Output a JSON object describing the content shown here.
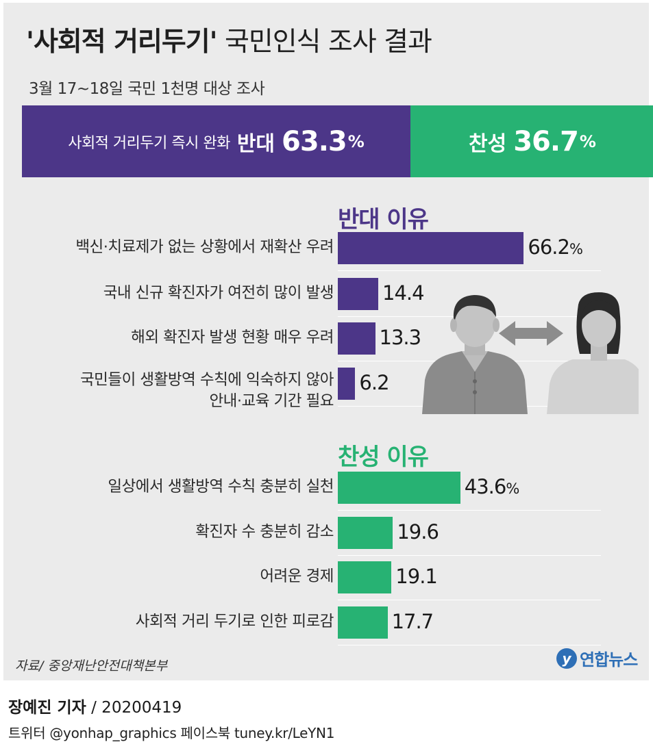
{
  "header": {
    "title_bold": "'사회적 거리두기'",
    "title_rest": " 국민인식 조사 결과",
    "subtitle": "3월 17~18일 국민 1천명 대상 조사"
  },
  "split": {
    "oppose_text": "사회적 거리두기 즉시 완화",
    "oppose_word": "반대",
    "oppose_value": "63.3",
    "support_word": "찬성",
    "support_value": "36.7",
    "pct": "%",
    "oppose_color": "#4c3688",
    "support_color": "#27b273"
  },
  "chart_data": [
    {
      "type": "bar",
      "title": "반대 이유",
      "color": "#4c3688",
      "categories": [
        [
          "백신·치료제가 없는 상황에서 재확산 우려"
        ],
        [
          "국내 신규 확진자가 여전히 많이 발생"
        ],
        [
          "해외 확진자 발생 현황 매우 우려"
        ],
        [
          "국민들이 생활방역 수칙에 익숙하지 않아",
          "안내·교육 기간 필요"
        ]
      ],
      "values": [
        66.2,
        14.4,
        13.3,
        6.2
      ],
      "value_labels": [
        "66.2",
        "14.4",
        "13.3",
        "6.2"
      ],
      "unit": "%"
    },
    {
      "type": "bar",
      "title": "찬성 이유",
      "color": "#27b273",
      "categories": [
        [
          "일상에서 생활방역 수칙 충분히 실천"
        ],
        [
          "확진자 수 충분히 감소"
        ],
        [
          "어려운 경제"
        ],
        [
          "사회적 거리 두기로 인한 피로감"
        ]
      ],
      "values": [
        43.6,
        19.6,
        19.1,
        17.7
      ],
      "value_labels": [
        "43.6",
        "19.6",
        "19.1",
        "17.7"
      ],
      "unit": "%"
    }
  ],
  "illustration": {
    "icon": "two-people-exchange-icon"
  },
  "footer": {
    "source": "자료/ 중앙재난안전대책본부",
    "logo_mark": "y",
    "logo_text": "연합뉴스",
    "reporter_name": "장예진 기자",
    "reporter_date": " / 20200419",
    "social": "트위터 @yonhap_graphics  페이스북 tuney.kr/LeYN1"
  }
}
